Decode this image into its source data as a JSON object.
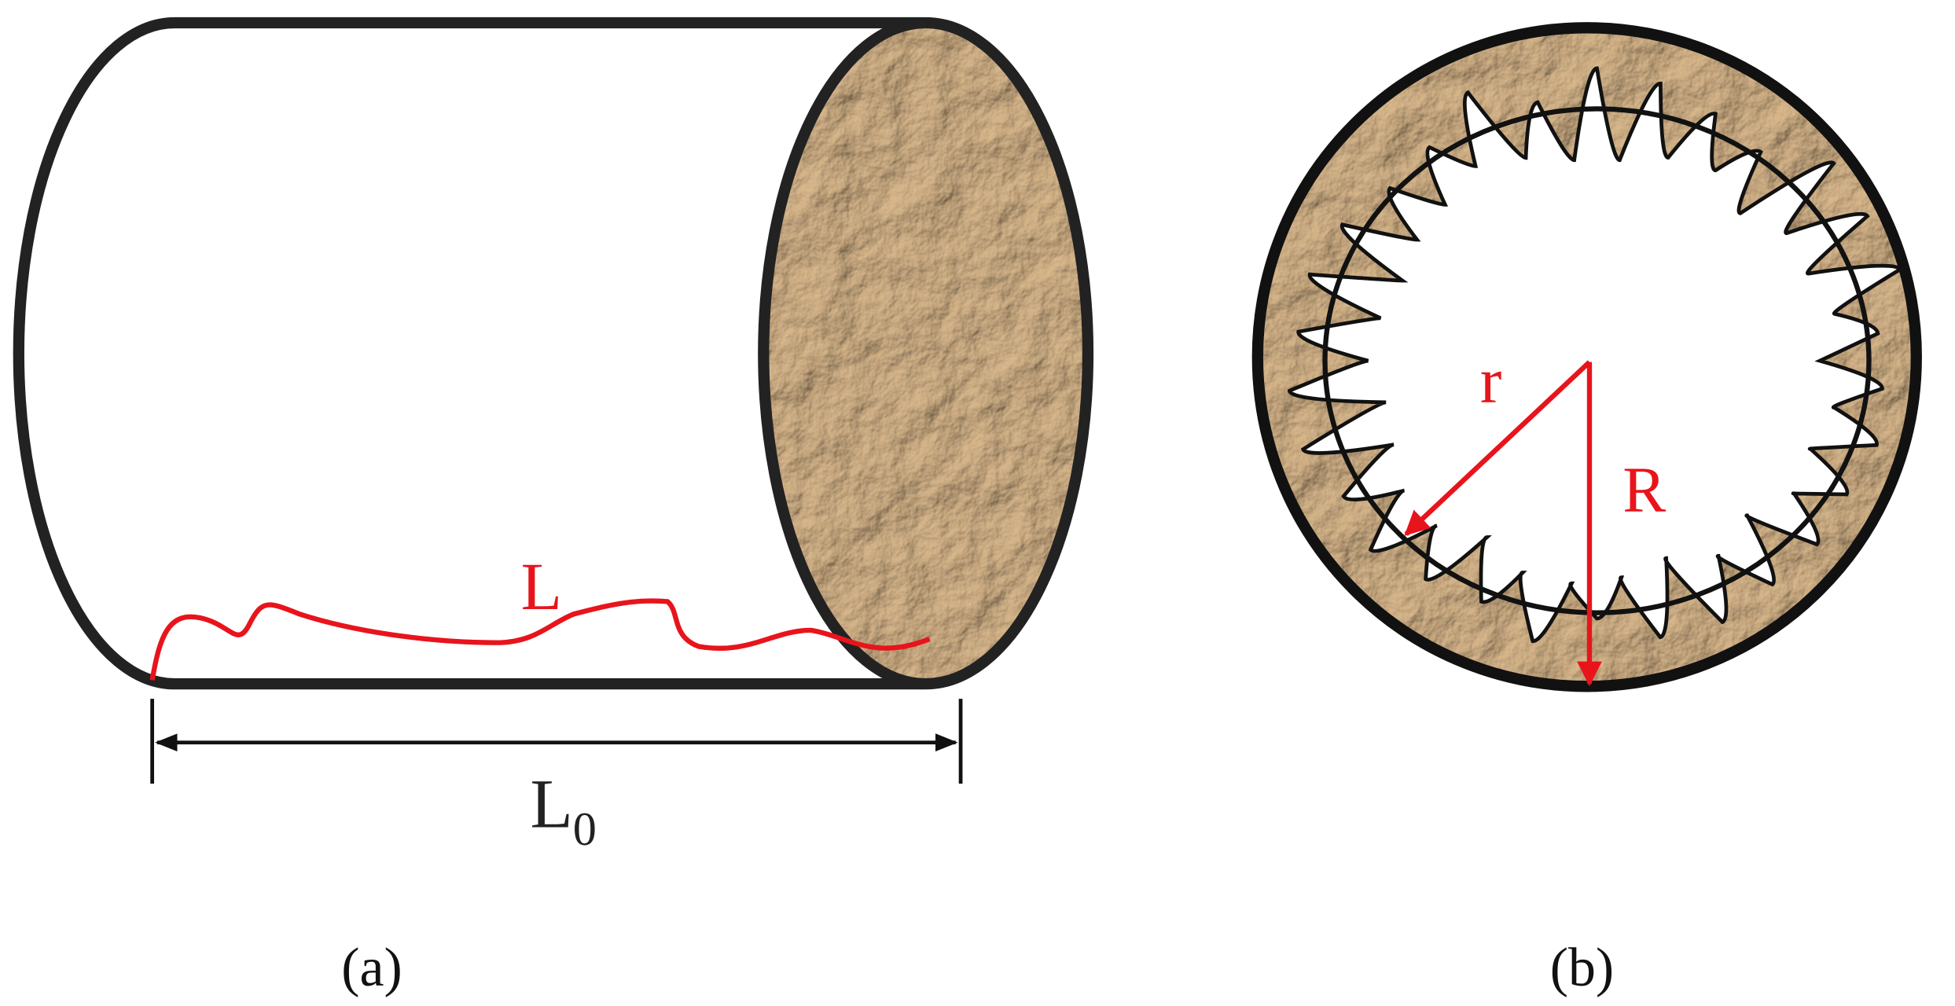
{
  "panel_a": {
    "curve_label": "L",
    "length_label": {
      "base": "L",
      "subscript": "0"
    },
    "caption": "(a)"
  },
  "panel_b": {
    "inner_radius_label": "r",
    "outer_radius_label": "R",
    "caption": "(b)"
  }
}
